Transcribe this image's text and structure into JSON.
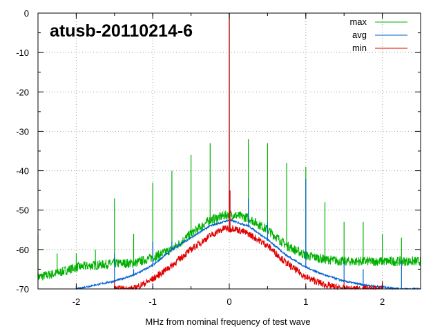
{
  "chart_data": {
    "type": "line",
    "title": "atusb-20110214-6",
    "xlabel": "MHz from nominal frequency of test wave",
    "ylabel": "",
    "xlim": [
      -2.5,
      2.5
    ],
    "ylim": [
      -70,
      0
    ],
    "x_ticks": [
      -2,
      -1,
      0,
      1,
      2
    ],
    "y_ticks": [
      0,
      -10,
      -20,
      -30,
      -40,
      -50,
      -60,
      -70
    ],
    "x_tick_labels": [
      "-2",
      "-1",
      "0",
      "1",
      "2"
    ],
    "y_tick_labels": [
      "0",
      "-10",
      "-20",
      "-30",
      "-40",
      "-50",
      "-60",
      "-70"
    ],
    "grid": true,
    "legend_position": "top-right",
    "series": [
      {
        "name": "max",
        "color": "#00b000",
        "x": [
          -2.5,
          -2.25,
          -2.0,
          -1.75,
          -1.5,
          -1.25,
          -1.0,
          -0.75,
          -0.5,
          -0.25,
          0.0,
          0.25,
          0.5,
          0.75,
          1.0,
          1.25,
          1.5,
          1.75,
          2.0,
          2.25,
          2.5
        ],
        "y": [
          -67,
          -66,
          -64.5,
          -64,
          -63.5,
          -63.5,
          -62,
          -60,
          -56,
          -52.5,
          -51,
          -52,
          -55,
          -59,
          -61.5,
          -62.5,
          -63,
          -63,
          -63,
          -63,
          -63
        ],
        "spikes": [
          {
            "x": -2.5,
            "y": -56
          },
          {
            "x": -2.25,
            "y": -61
          },
          {
            "x": -2.0,
            "y": -61
          },
          {
            "x": -1.75,
            "y": -60
          },
          {
            "x": -1.5,
            "y": -47
          },
          {
            "x": -1.25,
            "y": -56
          },
          {
            "x": -1.0,
            "y": -43
          },
          {
            "x": -0.75,
            "y": -40
          },
          {
            "x": -0.5,
            "y": -36
          },
          {
            "x": -0.25,
            "y": -33
          },
          {
            "x": 0.0,
            "y": 0
          },
          {
            "x": 0.25,
            "y": -32
          },
          {
            "x": 0.5,
            "y": -33
          },
          {
            "x": 0.75,
            "y": -38
          },
          {
            "x": 1.0,
            "y": -39
          },
          {
            "x": 1.25,
            "y": -48
          },
          {
            "x": 1.5,
            "y": -53
          },
          {
            "x": 1.75,
            "y": -53
          },
          {
            "x": 2.0,
            "y": -56
          },
          {
            "x": 2.25,
            "y": -57
          }
        ]
      },
      {
        "name": "avg",
        "color": "#0060d0",
        "x": [
          -2.0,
          -1.75,
          -1.5,
          -1.25,
          -1.0,
          -0.75,
          -0.5,
          -0.25,
          0.0,
          0.25,
          0.5,
          0.75,
          1.0,
          1.25,
          1.5,
          1.75,
          2.0,
          2.25,
          2.5
        ],
        "y": [
          -70,
          -69,
          -68,
          -66.5,
          -64,
          -60,
          -57,
          -54,
          -52.5,
          -54,
          -57.5,
          -61.5,
          -64.5,
          -66.5,
          -68,
          -69,
          -69.5,
          -70,
          -70
        ],
        "spikes": [
          {
            "x": -1.5,
            "y": -61
          },
          {
            "x": -1.25,
            "y": -65
          },
          {
            "x": -1.0,
            "y": -58
          },
          {
            "x": -0.75,
            "y": -58
          },
          {
            "x": 0.0,
            "y": 0
          },
          {
            "x": 0.25,
            "y": -47
          },
          {
            "x": 0.5,
            "y": -53
          },
          {
            "x": 1.0,
            "y": -42
          },
          {
            "x": 1.5,
            "y": -63
          },
          {
            "x": 1.75,
            "y": -65
          },
          {
            "x": 2.25,
            "y": -63
          }
        ]
      },
      {
        "name": "min",
        "color": "#e00000",
        "x": [
          -1.5,
          -1.25,
          -1.0,
          -0.75,
          -0.5,
          -0.25,
          -0.05,
          0.0,
          0.05,
          0.25,
          0.5,
          0.75,
          1.0,
          1.25,
          1.5,
          1.75,
          2.0
        ],
        "y": [
          -70,
          -70,
          -67.5,
          -64,
          -60,
          -56.5,
          -54.5,
          -55,
          -54.5,
          -56,
          -59,
          -63.5,
          -67,
          -69,
          -70,
          -70,
          -70
        ],
        "spikes": [
          {
            "x": -1.5,
            "y": -68
          },
          {
            "x": 0.0,
            "y": 0
          },
          {
            "x": 0.01,
            "y": -45
          },
          {
            "x": 1.5,
            "y": -68
          },
          {
            "x": 2.0,
            "y": -68
          }
        ]
      }
    ]
  }
}
